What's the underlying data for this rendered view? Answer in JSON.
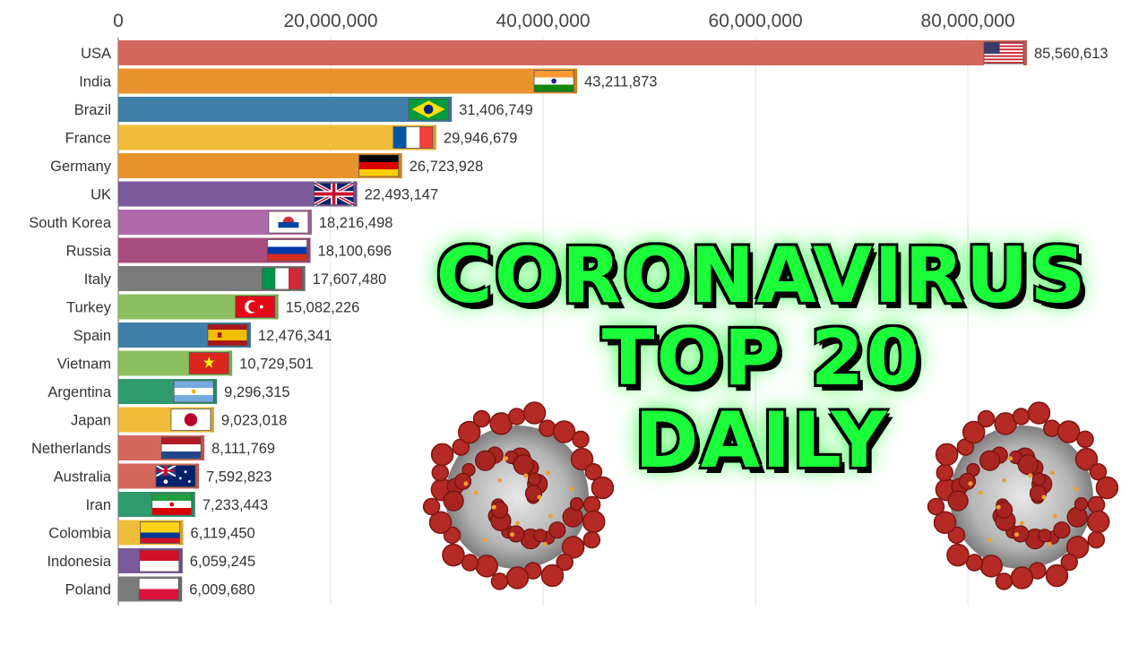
{
  "overlay": {
    "line1": "CORONAVIRUS",
    "line2": "TOP 20",
    "line3": "DAILY",
    "color": "#1aff3a"
  },
  "chart_data": {
    "type": "bar",
    "orientation": "horizontal",
    "xlim": [
      0,
      85560613
    ],
    "x_ticks": [
      0,
      20000000,
      40000000,
      60000000,
      80000000
    ],
    "x_tick_labels": [
      "0",
      "20,000,000",
      "40,000,000",
      "60,000,000",
      "80,000,000"
    ],
    "grid": true,
    "categories": [
      "USA",
      "India",
      "Brazil",
      "France",
      "Germany",
      "UK",
      "South Korea",
      "Russia",
      "Italy",
      "Turkey",
      "Spain",
      "Vietnam",
      "Argentina",
      "Japan",
      "Netherlands",
      "Australia",
      "Iran",
      "Colombia",
      "Indonesia",
      "Poland"
    ],
    "values": [
      85560613,
      43211873,
      31406749,
      29946679,
      26723928,
      22493147,
      18216498,
      18100696,
      17607480,
      15082226,
      12476341,
      10729501,
      9296315,
      9023018,
      8111769,
      7592823,
      7233443,
      6119450,
      6059245,
      6009680
    ],
    "value_labels": [
      "85,560,613",
      "43,211,873",
      "31,406,749",
      "29,946,679",
      "26,723,928",
      "22,493,147",
      "18,216,498",
      "18,100,696",
      "17,607,480",
      "15,082,226",
      "12,476,341",
      "10,729,501",
      "9,296,315",
      "9,023,018",
      "8,111,769",
      "7,592,823",
      "7,233,443",
      "6,119,450",
      "6,059,245",
      "6,009,680"
    ],
    "bar_colors": [
      "#d4675c",
      "#e8922e",
      "#3f7fa8",
      "#f0bc3a",
      "#e8922e",
      "#7a5a9a",
      "#b06aaa",
      "#a84c7e",
      "#7a7a7a",
      "#8cbf5f",
      "#3f7fa8",
      "#8cbf5f",
      "#2f9a6e",
      "#f0bc3a",
      "#d4675c",
      "#d4675c",
      "#2f9a6e",
      "#f0bc3a",
      "#7a5a9a",
      "#7a7a7a"
    ],
    "flags": [
      "flag-usa",
      "flag-india",
      "flag-brazil",
      "flag-france",
      "flag-germany",
      "flag-uk",
      "flag-south-korea",
      "flag-russia",
      "flag-italy",
      "flag-turkey",
      "flag-spain",
      "flag-vietnam",
      "flag-argentina",
      "flag-japan",
      "flag-netherlands",
      "flag-australia",
      "flag-iran",
      "flag-colombia",
      "flag-indonesia",
      "flag-poland"
    ]
  }
}
